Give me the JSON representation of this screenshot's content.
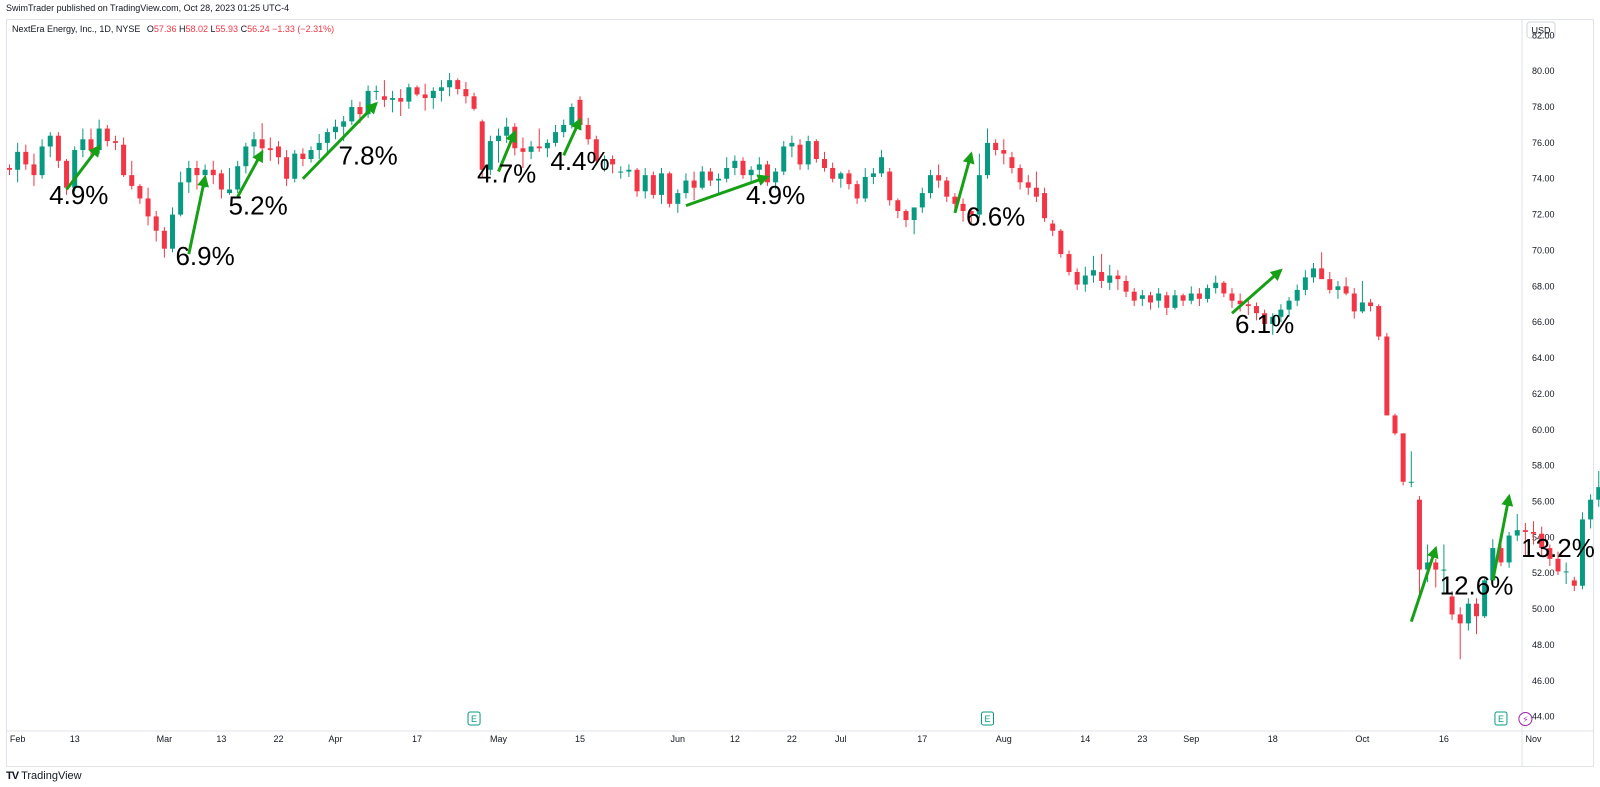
{
  "header": {
    "published": "SwimTrader published on TradingView.com, Oct 28, 2023 01:25 UTC-4"
  },
  "legend": {
    "symbol": "NextEra Energy, Inc., 1D, NYSE",
    "o_key": "O",
    "o_val": "57.36",
    "h_key": "H",
    "h_val": "58.02",
    "l_key": "L",
    "l_val": "55.93",
    "c_key": "C",
    "c_val": "56.24",
    "change": "−1.33 (−2.31%)"
  },
  "footer": {
    "brand": "TradingView",
    "logo": "TV"
  },
  "colors": {
    "up": "#089981",
    "down": "#f23645",
    "arrow": "#16a016",
    "axis_text": "#131722",
    "grid": "#e0e3eb"
  },
  "icons": {
    "earnings": "earnings-e-icon",
    "dividend": "lightning-icon"
  },
  "chart_data": {
    "type": "candlestick",
    "currency": "USD",
    "y_ticks": [
      "82.00",
      "80.00",
      "78.00",
      "76.00",
      "74.00",
      "72.00",
      "70.00",
      "68.00",
      "66.00",
      "64.00",
      "62.00",
      "60.00",
      "58.00",
      "56.00",
      "54.00",
      "52.00",
      "50.00",
      "48.00",
      "46.00",
      "44.00"
    ],
    "ylim": [
      44,
      82
    ],
    "x_ticks": [
      {
        "label": "Feb",
        "i": 1
      },
      {
        "label": "13",
        "i": 8
      },
      {
        "label": "Mar",
        "i": 19
      },
      {
        "label": "13",
        "i": 26
      },
      {
        "label": "22",
        "i": 33
      },
      {
        "label": "Apr",
        "i": 40
      },
      {
        "label": "17",
        "i": 50
      },
      {
        "label": "May",
        "i": 60
      },
      {
        "label": "15",
        "i": 70
      },
      {
        "label": "Jun",
        "i": 82
      },
      {
        "label": "12",
        "i": 89
      },
      {
        "label": "22",
        "i": 96
      },
      {
        "label": "Jul",
        "i": 102
      },
      {
        "label": "17",
        "i": 112
      },
      {
        "label": "Aug",
        "i": 122
      },
      {
        "label": "14",
        "i": 132
      },
      {
        "label": "23",
        "i": 139
      },
      {
        "label": "Sep",
        "i": 145
      },
      {
        "label": "18",
        "i": 155
      },
      {
        "label": "Oct",
        "i": 166
      },
      {
        "label": "16",
        "i": 176
      },
      {
        "label": "Nov",
        "i": 187
      }
    ],
    "candles": [
      [
        74.6,
        74.8,
        74.2,
        74.5
      ],
      [
        74.5,
        76.0,
        73.8,
        75.5
      ],
      [
        75.5,
        75.9,
        74.5,
        74.8
      ],
      [
        74.8,
        75.4,
        73.6,
        74.2
      ],
      [
        74.2,
        76.2,
        74.0,
        75.8
      ],
      [
        75.8,
        76.6,
        75.2,
        76.4
      ],
      [
        76.4,
        76.6,
        74.6,
        75.0
      ],
      [
        75.0,
        75.1,
        73.1,
        73.5
      ],
      [
        73.5,
        75.8,
        73.3,
        75.6
      ],
      [
        75.6,
        76.8,
        75.2,
        76.2
      ],
      [
        76.2,
        76.8,
        75.3,
        75.6
      ],
      [
        75.6,
        77.3,
        75.4,
        76.8
      ],
      [
        76.8,
        77.0,
        75.8,
        76.1
      ],
      [
        76.1,
        76.4,
        75.6,
        76.0
      ],
      [
        75.9,
        76.3,
        74.1,
        74.2
      ],
      [
        74.2,
        75.0,
        73.4,
        73.6
      ],
      [
        73.6,
        73.7,
        72.6,
        72.9
      ],
      [
        72.9,
        73.5,
        71.4,
        71.9
      ],
      [
        71.9,
        72.2,
        70.5,
        71.1
      ],
      [
        71.1,
        71.3,
        69.6,
        70.1
      ],
      [
        70.1,
        72.4,
        69.9,
        72.0
      ],
      [
        72.0,
        74.4,
        71.9,
        73.8
      ],
      [
        73.8,
        75.0,
        73.2,
        74.6
      ],
      [
        74.6,
        75.0,
        73.4,
        74.2
      ],
      [
        74.2,
        74.8,
        73.5,
        74.5
      ],
      [
        74.5,
        75.0,
        73.7,
        74.2
      ],
      [
        74.3,
        74.5,
        72.9,
        73.4
      ],
      [
        73.2,
        74.6,
        73.1,
        73.4
      ],
      [
        73.4,
        75.0,
        73.2,
        74.7
      ],
      [
        74.7,
        76.0,
        74.3,
        75.8
      ],
      [
        75.8,
        76.6,
        75.2,
        76.2
      ],
      [
        76.2,
        77.1,
        75.4,
        75.7
      ],
      [
        75.7,
        76.3,
        75.0,
        75.6
      ],
      [
        75.8,
        76.1,
        74.8,
        75.2
      ],
      [
        75.2,
        75.6,
        73.6,
        74.0
      ],
      [
        74.0,
        75.6,
        73.8,
        75.4
      ],
      [
        75.4,
        75.7,
        74.7,
        75.1
      ],
      [
        75.1,
        75.8,
        74.9,
        75.6
      ],
      [
        75.6,
        76.5,
        75.1,
        76.0
      ],
      [
        76.0,
        76.8,
        75.4,
        76.6
      ],
      [
        76.6,
        77.3,
        76.2,
        76.9
      ],
      [
        76.9,
        77.5,
        76.1,
        77.2
      ],
      [
        77.2,
        78.4,
        77.0,
        78.0
      ],
      [
        78.0,
        78.3,
        77.1,
        77.6
      ],
      [
        77.6,
        79.2,
        77.4,
        78.9
      ],
      [
        78.9,
        79.2,
        78.4,
        78.9
      ],
      [
        78.6,
        79.5,
        78.0,
        78.4
      ],
      [
        78.4,
        78.9,
        77.7,
        78.5
      ],
      [
        78.5,
        79.0,
        77.5,
        78.3
      ],
      [
        78.3,
        79.3,
        77.9,
        79.1
      ],
      [
        79.1,
        79.2,
        78.6,
        78.7
      ],
      [
        78.7,
        79.3,
        77.8,
        78.5
      ],
      [
        78.5,
        79.1,
        77.9,
        78.9
      ],
      [
        78.9,
        79.5,
        78.3,
        79.1
      ],
      [
        79.1,
        79.9,
        78.6,
        79.5
      ],
      [
        79.5,
        79.6,
        78.7,
        79.0
      ],
      [
        79.0,
        79.4,
        78.2,
        78.6
      ],
      [
        78.6,
        78.8,
        77.8,
        77.9
      ],
      [
        77.2,
        77.3,
        74.1,
        74.5
      ],
      [
        74.5,
        76.4,
        74.2,
        76.1
      ],
      [
        76.1,
        76.8,
        74.9,
        76.4
      ],
      [
        76.4,
        77.4,
        76.0,
        76.9
      ],
      [
        76.9,
        77.1,
        75.3,
        75.7
      ],
      [
        75.7,
        76.3,
        74.6,
        75.5
      ],
      [
        75.5,
        76.1,
        75.1,
        75.8
      ],
      [
        75.8,
        76.8,
        75.5,
        75.7
      ],
      [
        75.7,
        76.2,
        75.2,
        76.0
      ],
      [
        76.0,
        77.0,
        75.8,
        76.6
      ],
      [
        76.6,
        77.3,
        76.3,
        77.0
      ],
      [
        77.0,
        78.2,
        76.8,
        78.0
      ],
      [
        78.4,
        78.6,
        76.9,
        77.0
      ],
      [
        77.0,
        77.4,
        75.9,
        76.2
      ],
      [
        76.2,
        76.4,
        74.8,
        75.0
      ],
      [
        75.0,
        75.3,
        74.4,
        75.1
      ],
      [
        75.1,
        75.3,
        74.3,
        74.8
      ],
      [
        74.4,
        74.7,
        74.0,
        74.4
      ],
      [
        74.4,
        74.8,
        74.1,
        74.5
      ],
      [
        74.5,
        74.6,
        73.0,
        73.3
      ],
      [
        73.3,
        74.6,
        72.9,
        74.2
      ],
      [
        74.2,
        74.4,
        72.9,
        73.1
      ],
      [
        73.1,
        74.6,
        72.6,
        74.3
      ],
      [
        74.3,
        74.4,
        72.4,
        72.6
      ],
      [
        72.6,
        73.4,
        72.1,
        73.2
      ],
      [
        73.2,
        74.3,
        72.9,
        73.9
      ],
      [
        73.9,
        74.4,
        72.8,
        73.5
      ],
      [
        73.5,
        74.7,
        73.4,
        74.4
      ],
      [
        74.4,
        74.6,
        73.6,
        73.9
      ],
      [
        73.9,
        74.3,
        73.1,
        74.0
      ],
      [
        74.0,
        75.2,
        73.8,
        74.6
      ],
      [
        74.6,
        75.3,
        74.2,
        75.0
      ],
      [
        75.0,
        75.2,
        74.0,
        74.2
      ],
      [
        74.2,
        74.7,
        73.8,
        74.5
      ],
      [
        74.5,
        75.2,
        74.1,
        74.8
      ],
      [
        74.8,
        75.0,
        73.6,
        73.8
      ],
      [
        73.8,
        74.6,
        73.4,
        74.4
      ],
      [
        74.4,
        76.1,
        74.2,
        75.8
      ],
      [
        75.8,
        76.4,
        75.2,
        76.0
      ],
      [
        75.9,
        76.2,
        74.5,
        74.8
      ],
      [
        74.8,
        76.4,
        74.5,
        76.1
      ],
      [
        76.1,
        76.2,
        74.9,
        75.1
      ],
      [
        75.1,
        75.5,
        74.4,
        74.6
      ],
      [
        74.6,
        74.9,
        73.8,
        74.0
      ],
      [
        74.0,
        74.4,
        73.5,
        74.3
      ],
      [
        74.3,
        74.5,
        73.4,
        73.7
      ],
      [
        73.7,
        73.9,
        72.6,
        72.9
      ],
      [
        72.9,
        74.6,
        72.7,
        74.1
      ],
      [
        74.1,
        74.6,
        73.7,
        74.3
      ],
      [
        74.3,
        75.6,
        74.1,
        75.2
      ],
      [
        74.4,
        74.6,
        72.5,
        72.8
      ],
      [
        72.8,
        72.9,
        71.8,
        72.2
      ],
      [
        72.2,
        72.3,
        71.3,
        71.7
      ],
      [
        71.7,
        72.3,
        70.9,
        72.4
      ],
      [
        72.4,
        73.5,
        72.1,
        73.2
      ],
      [
        73.2,
        74.5,
        72.9,
        74.2
      ],
      [
        74.2,
        74.8,
        73.5,
        73.9
      ],
      [
        73.9,
        74.1,
        72.7,
        73.0
      ],
      [
        73.0,
        73.2,
        72.1,
        72.6
      ],
      [
        72.6,
        72.9,
        71.6,
        72.2
      ],
      [
        72.2,
        72.4,
        71.5,
        72.0
      ],
      [
        72.0,
        75.4,
        71.8,
        74.2
      ],
      [
        74.2,
        76.8,
        74.0,
        76.0
      ],
      [
        76.0,
        76.2,
        75.3,
        75.6
      ],
      [
        75.6,
        76.2,
        74.8,
        75.4
      ],
      [
        75.2,
        75.5,
        74.3,
        74.6
      ],
      [
        74.6,
        74.8,
        73.4,
        73.8
      ],
      [
        73.8,
        74.2,
        73.1,
        73.5
      ],
      [
        73.5,
        74.4,
        72.7,
        73.0
      ],
      [
        73.2,
        73.5,
        71.6,
        71.8
      ],
      [
        71.5,
        71.7,
        70.8,
        71.1
      ],
      [
        71.1,
        71.2,
        69.6,
        69.8
      ],
      [
        69.8,
        70.0,
        68.6,
        68.8
      ],
      [
        68.8,
        69.0,
        67.8,
        68.1
      ],
      [
        68.1,
        69.1,
        67.7,
        68.6
      ],
      [
        68.6,
        69.7,
        68.2,
        68.9
      ],
      [
        68.8,
        69.8,
        67.9,
        68.3
      ],
      [
        68.2,
        69.2,
        67.8,
        68.6
      ],
      [
        68.6,
        68.9,
        67.8,
        68.4
      ],
      [
        68.3,
        68.6,
        67.4,
        67.7
      ],
      [
        67.7,
        67.9,
        66.9,
        67.2
      ],
      [
        67.3,
        67.8,
        66.9,
        67.5
      ],
      [
        67.5,
        67.7,
        66.7,
        67.1
      ],
      [
        67.2,
        67.9,
        66.8,
        67.6
      ],
      [
        67.5,
        67.7,
        66.4,
        66.8
      ],
      [
        66.8,
        67.8,
        66.7,
        67.5
      ],
      [
        67.5,
        67.6,
        66.9,
        67.2
      ],
      [
        67.2,
        68.0,
        67.0,
        67.6
      ],
      [
        67.6,
        67.9,
        66.9,
        67.3
      ],
      [
        67.3,
        68.1,
        67.1,
        67.9
      ],
      [
        67.9,
        68.6,
        67.6,
        68.2
      ],
      [
        68.2,
        68.3,
        67.4,
        67.6
      ],
      [
        67.6,
        67.9,
        66.8,
        67.2
      ],
      [
        67.2,
        67.6,
        66.6,
        67.0
      ],
      [
        67.0,
        67.3,
        66.4,
        66.9
      ],
      [
        66.9,
        67.1,
        66.1,
        66.5
      ],
      [
        66.5,
        66.7,
        65.6,
        65.9
      ],
      [
        65.9,
        66.5,
        65.3,
        66.3
      ],
      [
        66.3,
        67.0,
        66.0,
        66.7
      ],
      [
        66.7,
        67.4,
        66.3,
        67.2
      ],
      [
        67.2,
        68.1,
        66.9,
        67.8
      ],
      [
        67.8,
        68.9,
        67.5,
        68.5
      ],
      [
        68.5,
        69.3,
        68.2,
        69.0
      ],
      [
        69.0,
        69.9,
        68.7,
        68.4
      ],
      [
        68.4,
        68.8,
        67.6,
        67.8
      ],
      [
        67.8,
        68.3,
        67.3,
        68.0
      ],
      [
        68.0,
        68.5,
        67.5,
        67.6
      ],
      [
        67.6,
        67.9,
        66.2,
        66.6
      ],
      [
        66.6,
        68.3,
        66.5,
        67.1
      ],
      [
        67.1,
        67.3,
        66.6,
        66.9
      ],
      [
        66.9,
        67.0,
        65.0,
        65.2
      ],
      [
        65.2,
        65.4,
        60.8,
        60.8
      ],
      [
        60.8,
        60.9,
        59.7,
        59.8
      ],
      [
        59.8,
        59.8,
        56.9,
        57.1
      ],
      [
        57.1,
        58.8,
        56.8,
        57.1
      ],
      [
        56.1,
        56.3,
        50.6,
        52.2
      ],
      [
        52.2,
        53.6,
        51.5,
        52.6
      ],
      [
        52.6,
        52.8,
        51.2,
        52.2
      ],
      [
        52.2,
        53.6,
        50.9,
        52.2
      ],
      [
        50.7,
        51.0,
        49.4,
        49.7
      ],
      [
        49.7,
        50.1,
        47.2,
        49.2
      ],
      [
        49.2,
        50.6,
        48.8,
        50.3
      ],
      [
        50.3,
        50.6,
        48.6,
        49.6
      ],
      [
        49.6,
        51.7,
        49.5,
        51.6
      ],
      [
        51.6,
        53.9,
        51.4,
        53.4
      ],
      [
        53.4,
        53.8,
        52.4,
        52.6
      ],
      [
        52.6,
        54.3,
        52.3,
        54.1
      ],
      [
        54.1,
        55.3,
        53.8,
        54.4
      ],
      [
        54.4,
        54.8,
        53.0,
        54.3
      ],
      [
        54.3,
        54.9,
        53.6,
        54.2
      ],
      [
        54.2,
        54.6,
        53.0,
        53.4
      ],
      [
        53.4,
        53.6,
        52.4,
        52.8
      ],
      [
        52.8,
        53.2,
        51.9,
        52.1
      ],
      [
        52.1,
        52.6,
        51.4,
        52.1
      ],
      [
        51.6,
        51.8,
        51.0,
        51.3
      ],
      [
        51.3,
        55.4,
        51.1,
        55.0
      ],
      [
        55.0,
        56.4,
        54.5,
        56.1
      ],
      [
        56.1,
        57.7,
        55.7,
        56.8
      ],
      [
        56.8,
        58.2,
        56.2,
        57.6
      ],
      [
        57.36,
        58.02,
        55.93,
        56.24
      ]
    ],
    "annotations": [
      {
        "label": "4.9%",
        "arrow_from": [
          7,
          73.4
        ],
        "arrow_to": [
          11,
          75.8
        ],
        "text_at": [
          8.5,
          72.6
        ]
      },
      {
        "label": "6.9%",
        "arrow_from": [
          22,
          69.8
        ],
        "arrow_to": [
          24,
          74.1
        ],
        "text_at": [
          24,
          69.2
        ]
      },
      {
        "label": "5.2%",
        "arrow_from": [
          28,
          73.0
        ],
        "arrow_to": [
          31,
          75.5
        ],
        "text_at": [
          30.5,
          72.0
        ]
      },
      {
        "label": "7.8%",
        "arrow_from": [
          36,
          74.0
        ],
        "arrow_to": [
          45,
          78.2
        ],
        "text_at": [
          44,
          74.8
        ]
      },
      {
        "label": "4.7%",
        "arrow_from": [
          60,
          74.4
        ],
        "arrow_to": [
          62,
          76.6
        ],
        "text_at": [
          61,
          73.8
        ]
      },
      {
        "label": "4.4%",
        "arrow_from": [
          68,
          75.3
        ],
        "arrow_to": [
          70,
          77.3
        ],
        "text_at": [
          70,
          74.5
        ]
      },
      {
        "label": "4.9%",
        "arrow_from": [
          83,
          72.5
        ],
        "arrow_to": [
          93,
          74.1
        ],
        "text_at": [
          94,
          72.6
        ]
      },
      {
        "label": "6.6%",
        "arrow_from": [
          116,
          72.1
        ],
        "arrow_to": [
          118,
          75.4
        ],
        "text_at": [
          121,
          71.4
        ]
      },
      {
        "label": "6.1%",
        "arrow_from": [
          150,
          66.5
        ],
        "arrow_to": [
          156,
          68.9
        ],
        "text_at": [
          154,
          65.4
        ]
      },
      {
        "label": "12.6%",
        "arrow_from": [
          172,
          49.3
        ],
        "arrow_to": [
          175,
          53.4
        ],
        "text_at": [
          180,
          50.8
        ]
      },
      {
        "label": "13.2%",
        "arrow_from": [
          182,
          51.6
        ],
        "arrow_to": [
          184,
          56.3
        ],
        "text_at": [
          190,
          52.9
        ]
      }
    ],
    "event_markers": [
      {
        "icon": "earnings",
        "label": "E",
        "i": 57
      },
      {
        "icon": "earnings",
        "label": "E",
        "i": 120
      },
      {
        "icon": "earnings",
        "label": "E",
        "i": 183
      },
      {
        "icon": "dividend",
        "label": "⚡",
        "i": 186
      }
    ]
  }
}
